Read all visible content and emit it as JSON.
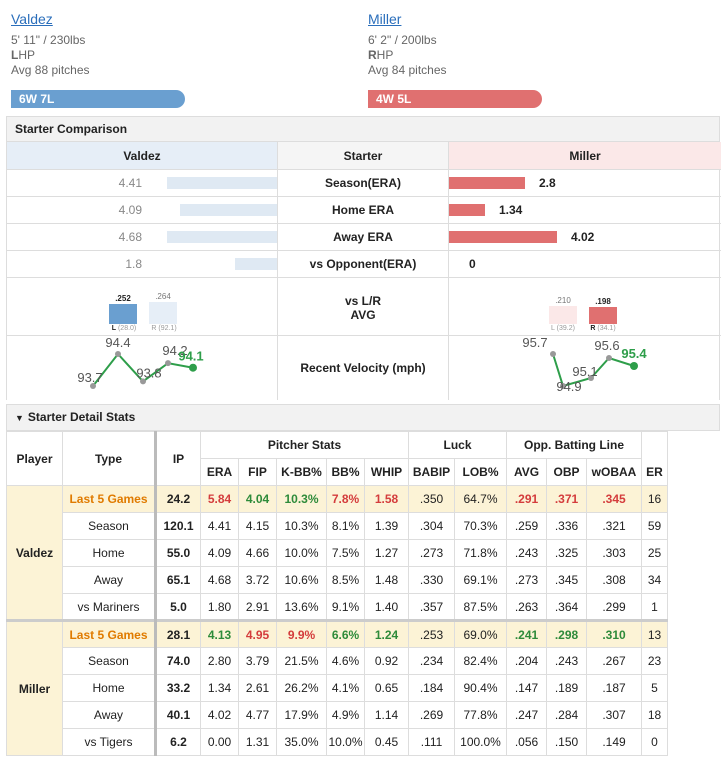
{
  "left_pitcher": {
    "name": "Valdez",
    "height_weight": "5' 11\" / 230lbs",
    "hand_letter": "L",
    "hand_rest": "HP",
    "avg_pitches": "Avg 88 pitches",
    "record": "6W 7L",
    "color": "#6a9fd0"
  },
  "right_pitcher": {
    "name": "Miller",
    "height_weight": "6' 2\" / 200lbs",
    "hand_letter": "R",
    "hand_rest": "HP",
    "avg_pitches": "Avg 84 pitches",
    "record": "4W 5L",
    "color": "#e07070"
  },
  "comparison": {
    "title": "Starter Comparison",
    "header": {
      "left": "Valdez",
      "middle": "Starter",
      "right": "Miller"
    },
    "rows": [
      {
        "label": "Season(ERA)",
        "left": "4.41",
        "right": "2.8",
        "left_frac": 0.93,
        "right_frac": 0.7
      },
      {
        "label": "Home ERA",
        "left": "4.09",
        "right": "1.34",
        "left_frac": 0.82,
        "right_frac": 0.33
      },
      {
        "label": "Away ERA",
        "left": "4.68",
        "right": "4.02",
        "left_frac": 0.93,
        "right_frac": 1.0
      },
      {
        "label": "vs Opponent(ERA)",
        "left": "1.8",
        "right": "0",
        "left_frac": 0.36,
        "right_frac": 0
      }
    ],
    "lr": {
      "label1": "vs L/R",
      "label2": "AVG",
      "left": {
        "l_val": ".252",
        "r_val": ".264",
        "l_label": "L",
        "l_sub": "(28.0)",
        "r_label": "R",
        "r_sub": "(92.1)"
      },
      "right": {
        "l_val": ".210",
        "r_val": ".198",
        "l_label": "L",
        "l_sub": "(39.2)",
        "r_label": "R",
        "r_sub": "(34.1)"
      }
    },
    "velocity": {
      "label": "Recent Velocity (mph)",
      "left": [
        "93.7",
        "94.4",
        "93.8",
        "94.2",
        "94.1"
      ],
      "right": [
        "95.7",
        "94.9",
        "95.1",
        "95.6",
        "95.4"
      ]
    }
  },
  "detail": {
    "title": "Starter Detail Stats",
    "headers": {
      "player": "Player",
      "type": "Type",
      "ip": "IP",
      "group1": "Pitcher Stats",
      "group2": "Luck",
      "group3": "Opp. Batting Line",
      "cols": [
        "ERA",
        "FIP",
        "K-BB%",
        "BB%",
        "WHIP",
        "BABIP",
        "LOB%",
        "AVG",
        "OBP",
        "wOBAA",
        "ER"
      ]
    },
    "players": [
      {
        "name": "Valdez",
        "rows": [
          {
            "type": "Last 5 Games",
            "ip": "24.2",
            "vals": [
              "5.84",
              "4.04",
              "10.3%",
              "7.8%",
              "1.58",
              ".350",
              "64.7%",
              ".291",
              ".371",
              ".345",
              "16"
            ],
            "cls": [
              "r",
              "g",
              "g",
              "r",
              "r",
              "",
              "",
              "r",
              "r",
              "r",
              ""
            ]
          },
          {
            "type": "Season",
            "ip": "120.1",
            "vals": [
              "4.41",
              "4.15",
              "10.3%",
              "8.1%",
              "1.39",
              ".304",
              "70.3%",
              ".259",
              ".336",
              ".321",
              "59"
            ]
          },
          {
            "type": "Home",
            "ip": "55.0",
            "vals": [
              "4.09",
              "4.66",
              "10.0%",
              "7.5%",
              "1.27",
              ".273",
              "71.8%",
              ".243",
              ".325",
              ".303",
              "25"
            ]
          },
          {
            "type": "Away",
            "ip": "65.1",
            "vals": [
              "4.68",
              "3.72",
              "10.6%",
              "8.5%",
              "1.48",
              ".330",
              "69.1%",
              ".273",
              ".345",
              ".308",
              "34"
            ]
          },
          {
            "type": "vs Mariners",
            "ip": "5.0",
            "vals": [
              "1.80",
              "2.91",
              "13.6%",
              "9.1%",
              "1.40",
              ".357",
              "87.5%",
              ".263",
              ".364",
              ".299",
              "1"
            ]
          }
        ]
      },
      {
        "name": "Miller",
        "rows": [
          {
            "type": "Last 5 Games",
            "ip": "28.1",
            "vals": [
              "4.13",
              "4.95",
              "9.9%",
              "6.6%",
              "1.24",
              ".253",
              "69.0%",
              ".241",
              ".298",
              ".310",
              "13"
            ],
            "cls": [
              "g",
              "r",
              "r",
              "g",
              "g",
              "",
              "",
              "g",
              "g",
              "g",
              ""
            ]
          },
          {
            "type": "Season",
            "ip": "74.0",
            "vals": [
              "2.80",
              "3.79",
              "21.5%",
              "4.6%",
              "0.92",
              ".234",
              "82.4%",
              ".204",
              ".243",
              ".267",
              "23"
            ]
          },
          {
            "type": "Home",
            "ip": "33.2",
            "vals": [
              "1.34",
              "2.61",
              "26.2%",
              "4.1%",
              "0.65",
              ".184",
              "90.4%",
              ".147",
              ".189",
              ".187",
              "5"
            ]
          },
          {
            "type": "Away",
            "ip": "40.1",
            "vals": [
              "4.02",
              "4.77",
              "17.9%",
              "4.9%",
              "1.14",
              ".269",
              "77.8%",
              ".247",
              ".284",
              ".307",
              "18"
            ]
          },
          {
            "type": "vs Tigers",
            "ip": "6.2",
            "vals": [
              "0.00",
              "1.31",
              "35.0%",
              "10.0%",
              "0.45",
              ".111",
              "100.0%",
              ".056",
              ".150",
              ".149",
              "0"
            ]
          }
        ]
      }
    ]
  }
}
